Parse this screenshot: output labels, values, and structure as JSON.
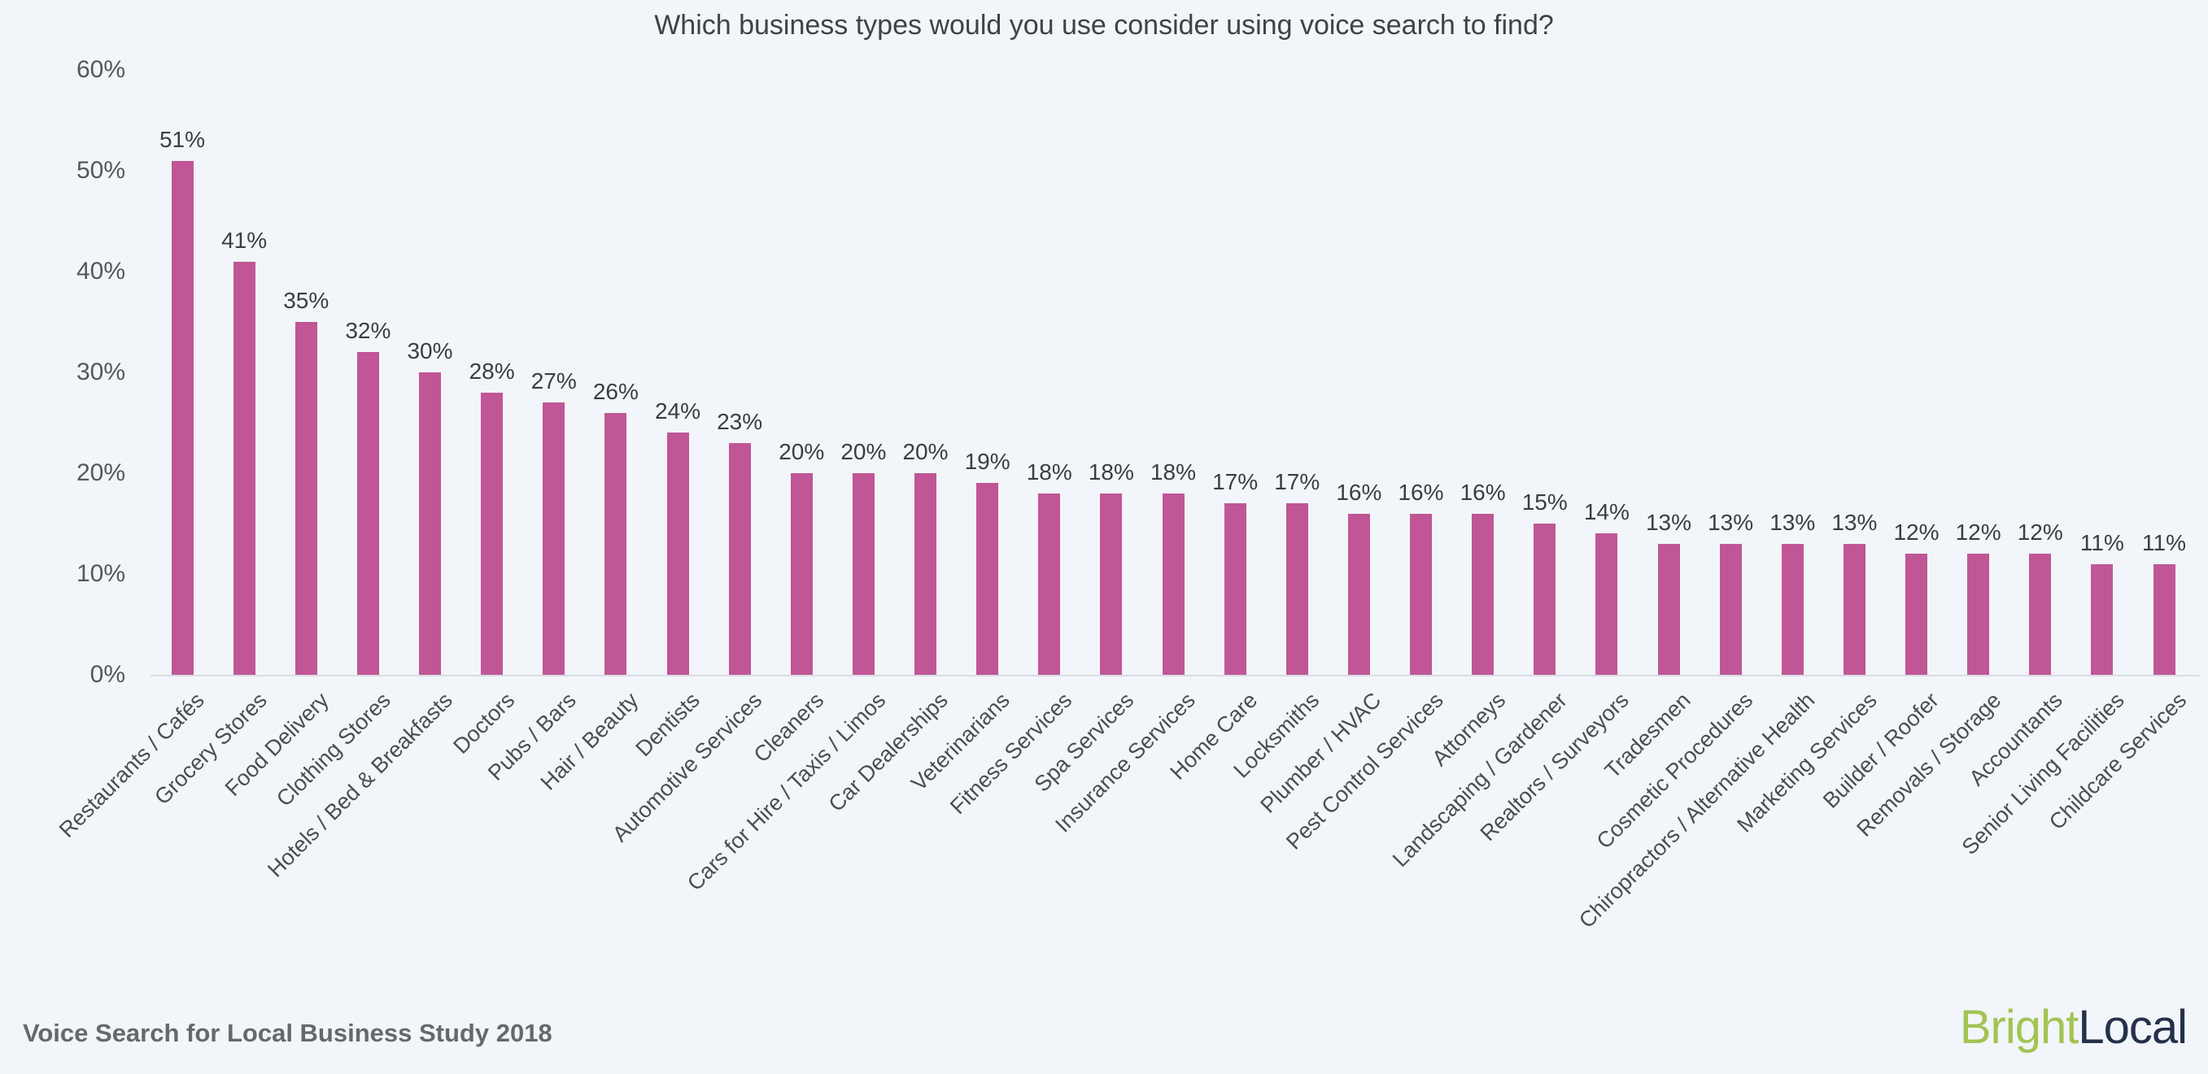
{
  "title": "Which business types would you use consider using voice search to find?",
  "footer": {
    "source_label": "Voice Search for Local Business Study 2018"
  },
  "brand": {
    "bright": "Bright",
    "local": "Local",
    "bright_color": "#a2c452",
    "local_color": "#25304a"
  },
  "colors": {
    "background": "#f2f5f9",
    "bar": "#c05695",
    "title_text": "#3e4347",
    "axis_text": "#54585c",
    "value_text": "#3a3e42",
    "category_text": "#4a4e52",
    "baseline": "#d9dde2",
    "source_text": "#65686c"
  },
  "chart_data": {
    "type": "bar",
    "title": "Which business types would you use consider using voice search to find?",
    "xlabel": "",
    "ylabel": "",
    "ylim": [
      0,
      60
    ],
    "yticks": [
      0,
      10,
      20,
      30,
      40,
      50,
      60
    ],
    "ytick_suffix": "%",
    "grid": false,
    "legend": false,
    "value_suffix": "%",
    "categories": [
      "Restaurants / Cafés",
      "Grocery Stores",
      "Food Delivery",
      "Clothing Stores",
      "Hotels / Bed & Breakfasts",
      "Doctors",
      "Pubs / Bars",
      "Hair / Beauty",
      "Dentists",
      "Automotive Services",
      "Cleaners",
      "Cars for Hire / Taxis / Limos",
      "Car Dealerships",
      "Veterinarians",
      "Fitness Services",
      "Spa Services",
      "Insurance Services",
      "Home Care",
      "Locksmiths",
      "Plumber / HVAC",
      "Pest Control Services",
      "Attorneys",
      "Landscaping / Gardener",
      "Realtors / Surveyors",
      "Tradesmen",
      "Cosmetic Procedures",
      "Chiropractors / Alternative Health",
      "Marketing Services",
      "Builder / Roofer",
      "Removals / Storage",
      "Accountants",
      "Senior Living Facilities",
      "Childcare Services"
    ],
    "values": [
      51,
      41,
      35,
      32,
      30,
      28,
      27,
      26,
      24,
      23,
      20,
      20,
      20,
      19,
      18,
      18,
      18,
      17,
      17,
      16,
      16,
      16,
      15,
      14,
      13,
      13,
      13,
      13,
      12,
      12,
      12,
      11,
      11
    ]
  }
}
